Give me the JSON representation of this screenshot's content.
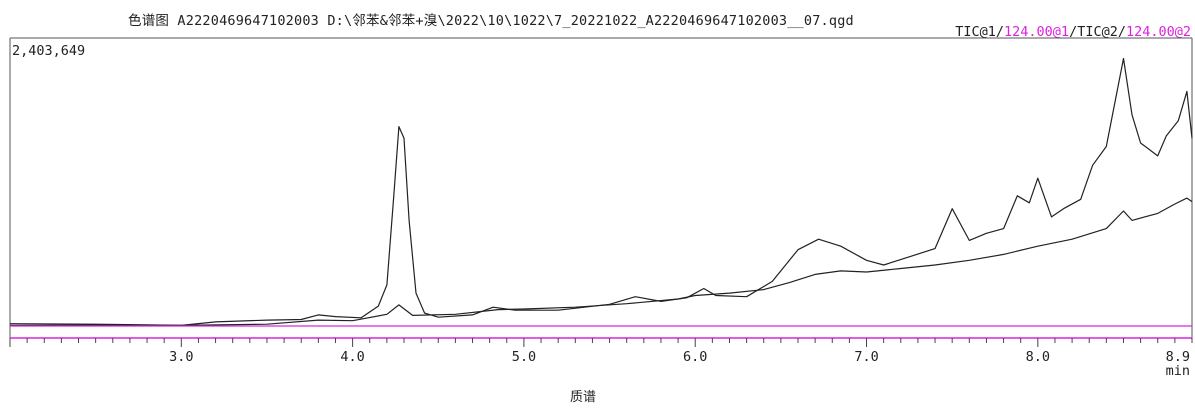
{
  "header": {
    "title": "色谱图 A2220469647102003 D:\\邻苯&邻苯+溴\\2022\\10\\1022\\7_20221022_A2220469647102003__07.qgd",
    "trace_legend": [
      {
        "text": "TIC@1/",
        "color": "#222222"
      },
      {
        "text": "124.00@1",
        "color": "#e020e0"
      },
      {
        "text": "/TIC@2/",
        "color": "#222222"
      },
      {
        "text": "124.00@2",
        "color": "#e020e0"
      }
    ]
  },
  "footer": {
    "label": "质谱"
  },
  "chart_data": {
    "type": "line",
    "y_max_label": "2,403,649",
    "ylim": [
      0,
      2403649
    ],
    "xlim": [
      2.0,
      8.9
    ],
    "x_unit": "min",
    "x_ticks": [
      {
        "value": 3.0,
        "label": "3.0"
      },
      {
        "value": 4.0,
        "label": "4.0"
      },
      {
        "value": 5.0,
        "label": "5.0"
      },
      {
        "value": 6.0,
        "label": "6.0"
      },
      {
        "value": 7.0,
        "label": "7.0"
      },
      {
        "value": 8.0,
        "label": "8.0"
      },
      {
        "value": 8.9,
        "label": "8.9"
      }
    ],
    "colors": {
      "tic": "#222222",
      "mass_trace": "#e020e0",
      "axis": "#555555"
    },
    "series": [
      {
        "name": "TIC@1",
        "color": "#222222",
        "points": [
          [
            2.0,
            20000
          ],
          [
            2.5,
            15000
          ],
          [
            3.0,
            5000
          ],
          [
            3.2,
            35000
          ],
          [
            3.5,
            50000
          ],
          [
            3.7,
            55000
          ],
          [
            3.8,
            95000
          ],
          [
            3.9,
            80000
          ],
          [
            4.05,
            70000
          ],
          [
            4.15,
            170000
          ],
          [
            4.2,
            350000
          ],
          [
            4.24,
            1100000
          ],
          [
            4.27,
            1700000
          ],
          [
            4.3,
            1600000
          ],
          [
            4.33,
            900000
          ],
          [
            4.37,
            280000
          ],
          [
            4.42,
            110000
          ],
          [
            4.5,
            75000
          ],
          [
            4.7,
            95000
          ],
          [
            4.82,
            160000
          ],
          [
            4.95,
            135000
          ],
          [
            5.2,
            135000
          ],
          [
            5.5,
            185000
          ],
          [
            5.65,
            250000
          ],
          [
            5.8,
            210000
          ],
          [
            5.95,
            240000
          ],
          [
            6.05,
            320000
          ],
          [
            6.12,
            260000
          ],
          [
            6.3,
            250000
          ],
          [
            6.45,
            380000
          ],
          [
            6.6,
            650000
          ],
          [
            6.72,
            740000
          ],
          [
            6.85,
            680000
          ],
          [
            7.0,
            560000
          ],
          [
            7.1,
            520000
          ],
          [
            7.25,
            590000
          ],
          [
            7.4,
            660000
          ],
          [
            7.5,
            1000000
          ],
          [
            7.6,
            730000
          ],
          [
            7.7,
            790000
          ],
          [
            7.8,
            830000
          ],
          [
            7.88,
            1110000
          ],
          [
            7.95,
            1050000
          ],
          [
            8.0,
            1260000
          ],
          [
            8.08,
            930000
          ],
          [
            8.15,
            1000000
          ],
          [
            8.25,
            1080000
          ],
          [
            8.32,
            1370000
          ],
          [
            8.4,
            1530000
          ],
          [
            8.5,
            2280000
          ],
          [
            8.55,
            1800000
          ],
          [
            8.6,
            1560000
          ],
          [
            8.7,
            1450000
          ],
          [
            8.75,
            1620000
          ],
          [
            8.82,
            1750000
          ],
          [
            8.87,
            2000000
          ],
          [
            8.9,
            1600000
          ]
        ]
      },
      {
        "name": "TIC@2",
        "color": "#222222",
        "points": [
          [
            2.0,
            5000
          ],
          [
            2.5,
            8000
          ],
          [
            3.0,
            5000
          ],
          [
            3.5,
            15000
          ],
          [
            3.8,
            50000
          ],
          [
            4.0,
            45000
          ],
          [
            4.2,
            100000
          ],
          [
            4.27,
            180000
          ],
          [
            4.35,
            90000
          ],
          [
            4.6,
            100000
          ],
          [
            4.85,
            140000
          ],
          [
            5.0,
            145000
          ],
          [
            5.3,
            160000
          ],
          [
            5.6,
            190000
          ],
          [
            5.9,
            230000
          ],
          [
            6.0,
            260000
          ],
          [
            6.2,
            280000
          ],
          [
            6.4,
            310000
          ],
          [
            6.55,
            370000
          ],
          [
            6.7,
            440000
          ],
          [
            6.85,
            470000
          ],
          [
            7.0,
            460000
          ],
          [
            7.2,
            490000
          ],
          [
            7.4,
            520000
          ],
          [
            7.6,
            560000
          ],
          [
            7.8,
            610000
          ],
          [
            8.0,
            680000
          ],
          [
            8.2,
            740000
          ],
          [
            8.4,
            830000
          ],
          [
            8.5,
            980000
          ],
          [
            8.55,
            900000
          ],
          [
            8.7,
            960000
          ],
          [
            8.8,
            1040000
          ],
          [
            8.87,
            1090000
          ],
          [
            8.9,
            1060000
          ]
        ]
      },
      {
        "name": "124.00@1",
        "color": "#e020e0",
        "points": [
          [
            2.0,
            0
          ],
          [
            8.9,
            0
          ]
        ]
      }
    ]
  }
}
